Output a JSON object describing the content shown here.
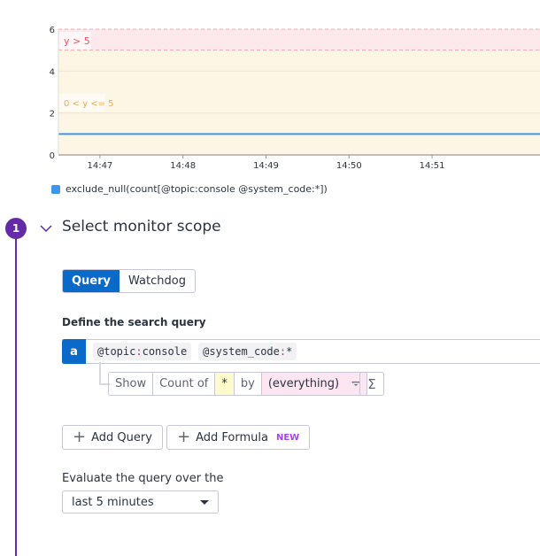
{
  "chart_data": {
    "type": "line",
    "ylim": [
      0,
      6
    ],
    "yticks": [
      0,
      2,
      4,
      6
    ],
    "xticks": [
      "14:47",
      "14:48",
      "14:49",
      "14:50",
      "14:51"
    ],
    "xlim_minutes": [
      "14:46:30",
      "14:52:18"
    ],
    "series": [
      {
        "name": "exclude_null(count[@topic:console @system_code:*])",
        "color": "#3d97ea",
        "values": [
          {
            "x": "14:46:30",
            "y": 1
          },
          {
            "x": "14:52:18",
            "y": 1
          }
        ]
      }
    ],
    "threshold_bands": [
      {
        "label": "y > 5",
        "from": 5,
        "to": 6,
        "color": "#fde9ec",
        "text_color": "#e8546a"
      },
      {
        "label": "0 < y <= 5",
        "from": 0,
        "to": 5,
        "color": "#fef6e4",
        "text_color": "#f2a93b"
      }
    ],
    "grid": true,
    "legend": "bottom-left"
  },
  "step": {
    "number": "1",
    "title": "Select monitor scope"
  },
  "tabs": [
    {
      "label": "Query",
      "active": true
    },
    {
      "label": "Watchdog",
      "active": false
    }
  ],
  "define_label": "Define the search query",
  "query": {
    "letter": "a",
    "tags": [
      {
        "key": "@topic",
        "value": "console"
      },
      {
        "key": "@system_code",
        "value": "*"
      }
    ],
    "show": "Show",
    "count_of": "Count of",
    "measure": "*",
    "by": "by",
    "group": "(everything)",
    "sigma": "Σ"
  },
  "buttons": {
    "add_query": "Add Query",
    "add_formula": "Add Formula",
    "new_badge": "NEW"
  },
  "evaluate": {
    "label": "Evaluate the query over the",
    "value": "last 5 minutes"
  }
}
